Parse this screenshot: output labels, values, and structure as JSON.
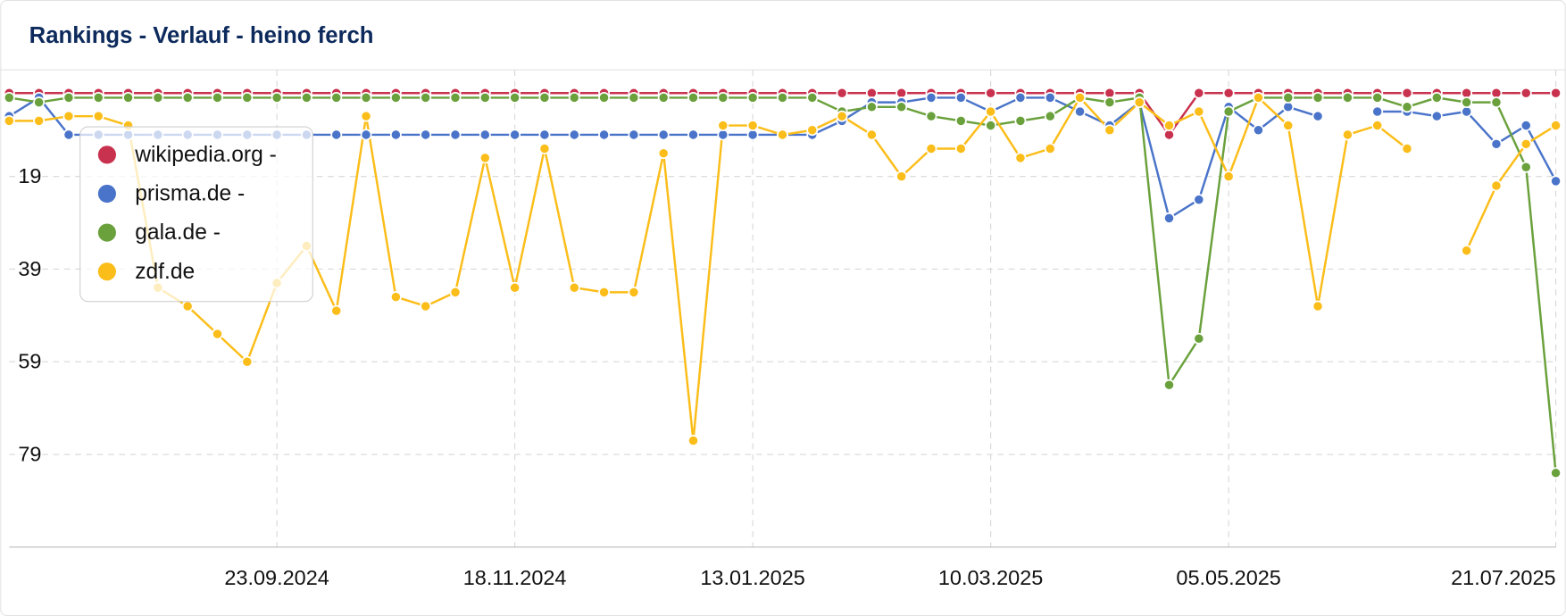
{
  "chart_data": {
    "type": "line",
    "title": "Rankings - Verlauf - heino ferch",
    "x": [
      "22.07.2024",
      "29.07.2024",
      "05.08.2024",
      "12.08.2024",
      "19.08.2024",
      "26.08.2024",
      "02.09.2024",
      "09.09.2024",
      "16.09.2024",
      "23.09.2024",
      "30.09.2024",
      "07.10.2024",
      "14.10.2024",
      "21.10.2024",
      "28.10.2024",
      "04.11.2024",
      "11.11.2024",
      "18.11.2024",
      "25.11.2024",
      "02.12.2024",
      "09.12.2024",
      "16.12.2024",
      "23.12.2024",
      "30.12.2024",
      "06.01.2025",
      "13.01.2025",
      "20.01.2025",
      "27.01.2025",
      "03.02.2025",
      "10.02.2025",
      "17.02.2025",
      "24.02.2025",
      "03.03.2025",
      "10.03.2025",
      "17.03.2025",
      "24.03.2025",
      "31.03.2025",
      "07.04.2025",
      "14.04.2025",
      "21.04.2025",
      "28.04.2025",
      "05.05.2025",
      "12.05.2025",
      "19.05.2025",
      "26.05.2025",
      "02.06.2025",
      "09.06.2025",
      "16.06.2025",
      "23.06.2025",
      "30.06.2025",
      "07.07.2025",
      "14.07.2025",
      "21.07.2025"
    ],
    "xlim": [
      "22.07.2024",
      "21.07.2025"
    ],
    "xticks": [
      "23.09.2024",
      "18.11.2024",
      "13.01.2025",
      "10.03.2025",
      "05.05.2025",
      "21.07.2025"
    ],
    "ylim": [
      99,
      -4
    ],
    "yticks": [
      19,
      39,
      59,
      79
    ],
    "grid": true,
    "legend": "upper left",
    "series": [
      {
        "name": "wikipedia.org -",
        "color": "#c8324e",
        "values": [
          1,
          1,
          1,
          1,
          1,
          1,
          1,
          1,
          1,
          1,
          1,
          1,
          1,
          1,
          1,
          1,
          1,
          1,
          1,
          1,
          1,
          1,
          1,
          1,
          1,
          1,
          1,
          1,
          1,
          1,
          1,
          1,
          1,
          1,
          1,
          1,
          1,
          1,
          1,
          10,
          1,
          1,
          1,
          1,
          1,
          1,
          1,
          1,
          1,
          1,
          1,
          1,
          1
        ]
      },
      {
        "name": "prisma.de -",
        "color": "#4a74c9",
        "values": [
          6,
          2,
          10,
          10,
          10,
          10,
          10,
          10,
          10,
          10,
          10,
          10,
          10,
          10,
          10,
          10,
          10,
          10,
          10,
          10,
          10,
          10,
          10,
          10,
          10,
          10,
          10,
          10,
          7,
          3,
          3,
          2,
          2,
          5,
          2,
          2,
          5,
          8,
          3,
          28,
          24,
          4,
          9,
          4,
          6,
          null,
          5,
          5,
          6,
          5,
          12,
          8,
          20
        ]
      },
      {
        "name": "gala.de -",
        "color": "#6aa13c",
        "values": [
          2,
          3,
          2,
          2,
          2,
          2,
          2,
          2,
          2,
          2,
          2,
          2,
          2,
          2,
          2,
          2,
          2,
          2,
          2,
          2,
          2,
          2,
          2,
          2,
          2,
          2,
          2,
          2,
          5,
          4,
          4,
          6,
          7,
          8,
          7,
          6,
          2,
          3,
          2,
          64,
          54,
          5,
          2,
          2,
          2,
          2,
          2,
          4,
          2,
          3,
          3,
          17,
          83
        ]
      },
      {
        "name": "zdf.de",
        "color": "#fbbd19",
        "values": [
          7,
          7,
          6,
          6,
          8,
          43,
          47,
          53,
          59,
          42,
          34,
          48,
          6,
          45,
          47,
          44,
          15,
          43,
          13,
          43,
          44,
          44,
          14,
          76,
          8,
          8,
          10,
          9,
          6,
          10,
          19,
          13,
          13,
          5,
          15,
          13,
          2,
          9,
          3,
          8,
          5,
          19,
          2,
          8,
          47,
          10,
          8,
          13,
          null,
          35,
          21,
          12,
          8
        ]
      }
    ]
  }
}
